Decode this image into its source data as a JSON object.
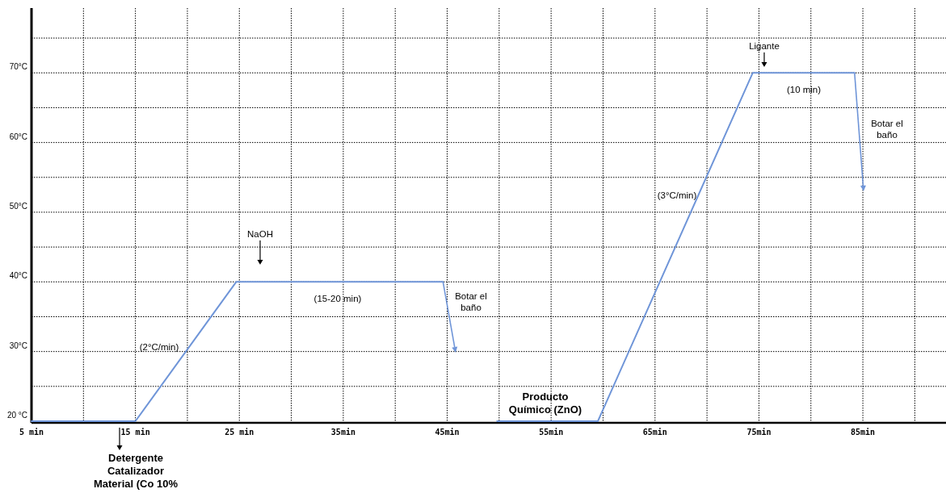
{
  "chart_data": {
    "type": "line",
    "xlim": [
      5,
      93
    ],
    "ylim": [
      20,
      79.3
    ],
    "xticks": [
      {
        "value": 5,
        "label": "5 min"
      },
      {
        "value": 10,
        "label": null
      },
      {
        "value": 15,
        "label": "15 min"
      },
      {
        "value": 20,
        "label": null
      },
      {
        "value": 25,
        "label": "25 min"
      },
      {
        "value": 30,
        "label": null
      },
      {
        "value": 35,
        "label": "35min"
      },
      {
        "value": 40,
        "label": null
      },
      {
        "value": 45,
        "label": "45min"
      },
      {
        "value": 50,
        "label": null
      },
      {
        "value": 55,
        "label": "55min"
      },
      {
        "value": 60,
        "label": null
      },
      {
        "value": 65,
        "label": "65min"
      },
      {
        "value": 70,
        "label": null
      },
      {
        "value": 75,
        "label": "75min"
      },
      {
        "value": 80,
        "label": null
      },
      {
        "value": 85,
        "label": "85min"
      },
      {
        "value": 90,
        "label": null
      }
    ],
    "yticks": [
      {
        "value": 20,
        "label": "20 °C"
      },
      {
        "value": 25,
        "label": null
      },
      {
        "value": 30,
        "label": "30°C"
      },
      {
        "value": 35,
        "label": null
      },
      {
        "value": 40,
        "label": "40°C"
      },
      {
        "value": 45,
        "label": null
      },
      {
        "value": 50,
        "label": "50°C"
      },
      {
        "value": 55,
        "label": null
      },
      {
        "value": 60,
        "label": "60°C"
      },
      {
        "value": 65,
        "label": null
      },
      {
        "value": 70,
        "label": "70°C"
      },
      {
        "value": 75,
        "label": null
      }
    ],
    "grid": true,
    "marker": "none",
    "line_style": "solid",
    "series": [
      {
        "color": "#6f95d8",
        "x": [
          5,
          15,
          24.7,
          44.6
        ],
        "values": [
          20,
          20,
          40,
          40
        ]
      },
      {
        "color": "#6f95d8",
        "x": [
          49.8,
          59.5,
          74.4,
          84.2
        ],
        "values": [
          20,
          20,
          70,
          70
        ]
      }
    ],
    "annotations": [
      "NaOH",
      "(15-20 min)",
      "(2°C/min)",
      "Botar el\nbaño",
      "Ligante",
      "(10 min)",
      "Botar el\nbaño",
      "(3°C/min)",
      "Producto\nQuímico (ZnO)",
      "Detergente\nCatalizador\nMaterial (Co 10%"
    ]
  }
}
